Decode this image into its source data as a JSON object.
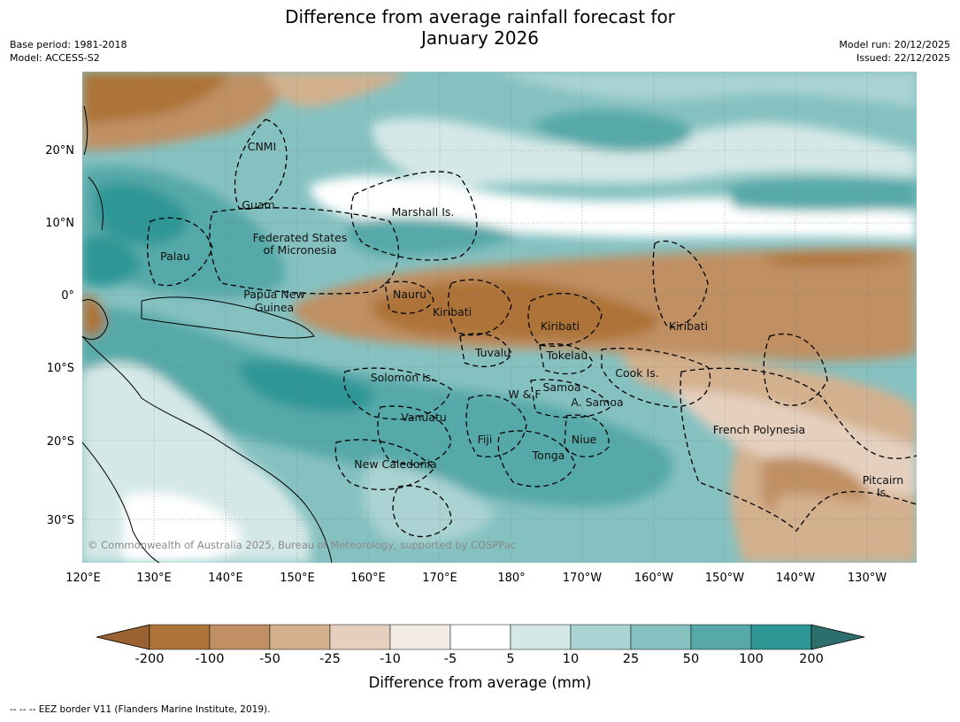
{
  "title_line1": "Difference from average rainfall forecast for",
  "title_line2": "January 2026",
  "base_period": "Base period: 1981-2018",
  "model": "Model: ACCESS-S2",
  "model_run": "Model run: 20/12/2025",
  "issued": "Issued: 22/12/2025",
  "copyright": "© Commonwealth of Australia 2025, Bureau of Meteorology, supported by COSPPac",
  "lon_labels": [
    "120°E",
    "130°E",
    "140°E",
    "150°E",
    "160°E",
    "170°E",
    "180°",
    "170°W",
    "160°W",
    "150°W",
    "140°W",
    "130°W"
  ],
  "lat_labels": [
    "20°N",
    "10°N",
    "0°",
    "10°S",
    "20°S",
    "30°S"
  ],
  "places": [
    "CNMI",
    "Guam",
    "Marshall Is.",
    "Federated States",
    "of Micronesia",
    "Palau",
    "Nauru",
    "Papua New",
    "Guinea",
    "Kiribati",
    "Kiribati",
    "Kiribati",
    "Tuvalu",
    "Tokelau",
    "Cook Is.",
    "Solomon Is.",
    "Samoa",
    "W & F",
    "A. Samoa",
    "Vanuatu",
    "Fiji",
    "Niue",
    "Tonga",
    "New Caledonia",
    "French Polynesia",
    "Pitcairn",
    "Is."
  ],
  "colorbar": {
    "ticks": [
      "-200",
      "-100",
      "-50",
      "-25",
      "-10",
      "-5",
      "5",
      "10",
      "25",
      "50",
      "100",
      "200"
    ],
    "colors": [
      "#9a6232",
      "#ad7339",
      "#c09064",
      "#d3b08e",
      "#e5d0bf",
      "#f3ece4",
      "#ffffff",
      "#d4e8e7",
      "#abd3d3",
      "#86c1c1",
      "#57a9a9",
      "#2f9696",
      "#2c6f6c"
    ],
    "label": "Difference from average (mm)"
  },
  "eez_note": "--  --  -- EEZ border V11 (Flanders Marine Institute, 2019)."
}
